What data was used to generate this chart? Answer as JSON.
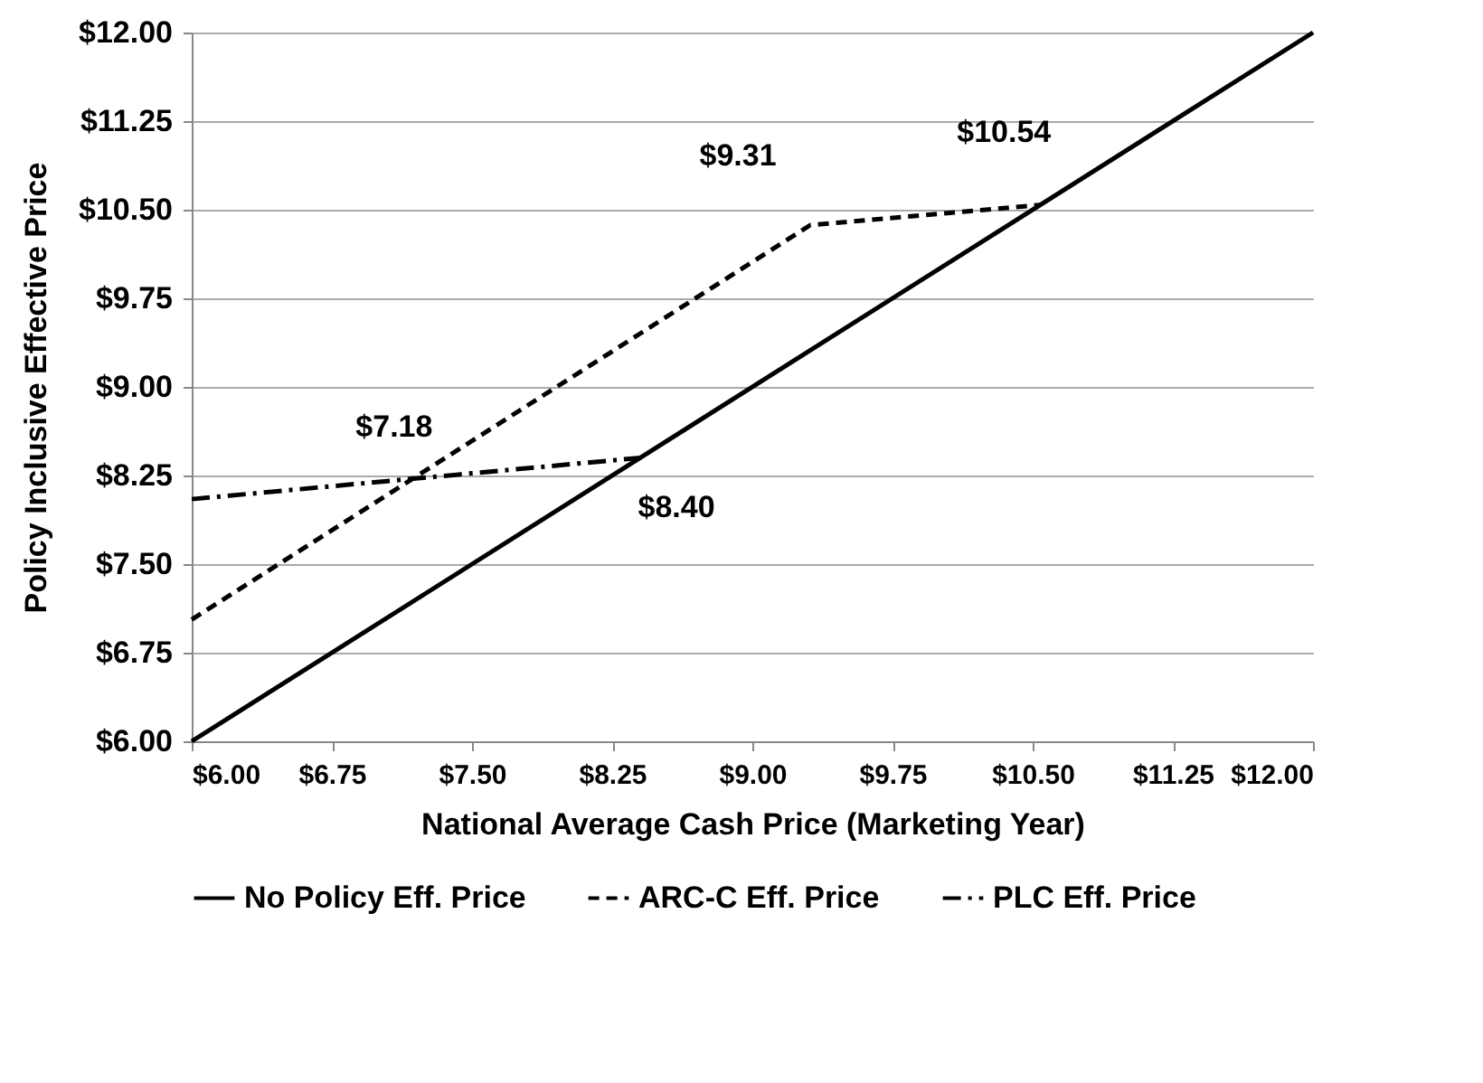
{
  "chart_data": {
    "type": "line",
    "xlabel": "National Average Cash Price (Marketing Year)",
    "ylabel": "Policy Inclusive Effective Price",
    "series": [
      {
        "name": "No Policy Eff. Price",
        "color": "#000000",
        "line_style": "solid",
        "x": [
          6,
          12
        ],
        "values": [
          6,
          12
        ]
      },
      {
        "name": "ARC-C Eff. Price",
        "color": "#000000",
        "line_style": "dashed",
        "x": [
          6,
          9.31,
          10.54
        ],
        "values": [
          7.03,
          10.37,
          10.54
        ]
      },
      {
        "name": "PLC Eff. Price",
        "color": "#000000",
        "line_style": "dashdot",
        "x": [
          6,
          8.4
        ],
        "values": [
          8.05,
          8.4
        ]
      }
    ],
    "xlim": [
      6,
      12
    ],
    "ylim": [
      6,
      12
    ],
    "xticks": [
      {
        "value": 6,
        "label": "$6.00"
      },
      {
        "value": 6.75,
        "label": "$6.75"
      },
      {
        "value": 7.5,
        "label": "$7.50"
      },
      {
        "value": 8.25,
        "label": "$8.25"
      },
      {
        "value": 9,
        "label": "$9.00"
      },
      {
        "value": 9.75,
        "label": "$9.75"
      },
      {
        "value": 10.5,
        "label": "$10.50"
      },
      {
        "value": 11.25,
        "label": "$11.25"
      },
      {
        "value": 12,
        "label": "$12.00"
      }
    ],
    "yticks": [
      {
        "value": 6,
        "label": "$6.00"
      },
      {
        "value": 6.75,
        "label": "$6.75"
      },
      {
        "value": 7.5,
        "label": "$7.50"
      },
      {
        "value": 8.25,
        "label": "$8.25"
      },
      {
        "value": 9,
        "label": "$9.00"
      },
      {
        "value": 9.75,
        "label": "$9.75"
      },
      {
        "value": 10.5,
        "label": "$10.50"
      },
      {
        "value": 11.25,
        "label": "$11.25"
      },
      {
        "value": 12,
        "label": "$12.00"
      }
    ],
    "annotations": [
      {
        "text": "$7.18",
        "x": 7.18,
        "y": 8.23
      },
      {
        "text": "$8.40",
        "x": 8.4,
        "y": 8.4
      },
      {
        "text": "$9.31",
        "x": 9.31,
        "y": 10.37
      },
      {
        "text": "$10.54",
        "x": 10.54,
        "y": 10.54
      }
    ],
    "grid": "y",
    "legend": "bottom",
    "marker": "none"
  }
}
